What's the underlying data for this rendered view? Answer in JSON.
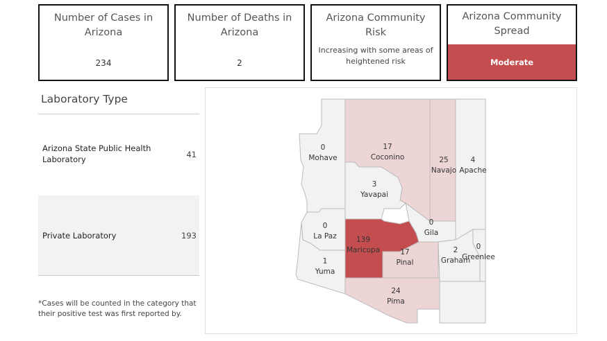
{
  "cards": {
    "cases": {
      "title": "Number of Cases in Arizona",
      "value": "234"
    },
    "deaths": {
      "title": "Number of Deaths in Arizona",
      "value": "2"
    },
    "risk": {
      "title": "Arizona Community Risk",
      "desc": "Increasing with some areas of heightened risk"
    },
    "spread": {
      "title": "Arizona Community Spread",
      "level": "Moderate"
    }
  },
  "lab": {
    "title": "Laboratory Type",
    "rows": [
      {
        "name": "Arizona State Public Health Laboratory",
        "count": "41"
      },
      {
        "name": "Private Laboratory",
        "count": "193"
      }
    ]
  },
  "footnote": "*Cases will be counted in the category that their positive test was first reported by.",
  "map": {
    "counties": [
      {
        "name": "Mohave",
        "count": "0"
      },
      {
        "name": "Coconino",
        "count": "17"
      },
      {
        "name": "Navajo",
        "count": "25"
      },
      {
        "name": "Apache",
        "count": "4"
      },
      {
        "name": "Yavapai",
        "count": "3"
      },
      {
        "name": "La Paz",
        "count": "0"
      },
      {
        "name": "Maricopa",
        "count": "139"
      },
      {
        "name": "Gila",
        "count": "0"
      },
      {
        "name": "Pinal",
        "count": "17"
      },
      {
        "name": "Graham",
        "count": "2"
      },
      {
        "name": "Greenlee",
        "count": "0"
      },
      {
        "name": "Yuma",
        "count": "1"
      },
      {
        "name": "Pima",
        "count": "24"
      }
    ],
    "colors": {
      "none": "#f2f2f2",
      "low": "#eed5d5",
      "high": "#c44e4f",
      "stroke": "#bbbbbb"
    }
  }
}
